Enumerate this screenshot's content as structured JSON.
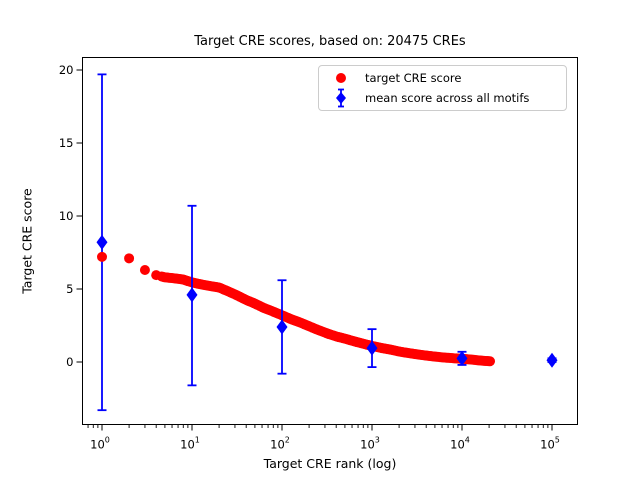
{
  "chart_data": {
    "type": "scatter",
    "title": "Target CRE scores, based on: 20475 CREs",
    "xlabel": "Target CRE rank (log)",
    "ylabel": "Target CRE score",
    "x_scale": "log",
    "x_tick_exponents": [
      0,
      1,
      2,
      3,
      4,
      5
    ],
    "y_ticks": [
      0,
      5,
      10,
      15,
      20
    ],
    "xlim_log10": [
      -0.22,
      5.28
    ],
    "ylim": [
      -4.3,
      20.9
    ],
    "grid": false,
    "legend_position": "upper right",
    "legend": [
      {
        "label": "target CRE score",
        "marker": "circle",
        "color": "#ff0000"
      },
      {
        "label": "mean score across all motifs",
        "marker": "diamond-errorbar",
        "color": "#0000ff"
      }
    ],
    "series": [
      {
        "name": "target CRE score",
        "marker": "circle",
        "color": "#ff0000",
        "n_points": 20475,
        "points_rank_score": [
          [
            1,
            7.2
          ],
          [
            2,
            7.1
          ],
          [
            3,
            6.3
          ],
          [
            4,
            5.95
          ],
          [
            5,
            5.8
          ],
          [
            6,
            5.75
          ],
          [
            7,
            5.7
          ],
          [
            8,
            5.65
          ],
          [
            10,
            5.45
          ],
          [
            13,
            5.3
          ],
          [
            16,
            5.2
          ],
          [
            20,
            5.1
          ],
          [
            25,
            4.85
          ],
          [
            32,
            4.55
          ],
          [
            40,
            4.25
          ],
          [
            50,
            4.0
          ],
          [
            63,
            3.7
          ],
          [
            80,
            3.45
          ],
          [
            100,
            3.2
          ],
          [
            130,
            2.9
          ],
          [
            160,
            2.7
          ],
          [
            200,
            2.45
          ],
          [
            250,
            2.2
          ],
          [
            320,
            1.95
          ],
          [
            400,
            1.75
          ],
          [
            500,
            1.6
          ],
          [
            630,
            1.42
          ],
          [
            800,
            1.25
          ],
          [
            1000,
            1.1
          ],
          [
            1300,
            0.95
          ],
          [
            1600,
            0.85
          ],
          [
            2000,
            0.72
          ],
          [
            2500,
            0.62
          ],
          [
            3200,
            0.52
          ],
          [
            4000,
            0.44
          ],
          [
            5000,
            0.37
          ],
          [
            6300,
            0.31
          ],
          [
            8000,
            0.26
          ],
          [
            10000,
            0.22
          ],
          [
            13000,
            0.16
          ],
          [
            16000,
            0.1
          ],
          [
            20475,
            0.05
          ]
        ]
      },
      {
        "name": "mean score across all motifs",
        "marker": "diamond",
        "color": "#0000ff",
        "points": [
          {
            "rank": 1,
            "mean": 8.2,
            "lo": -3.3,
            "hi": 19.7
          },
          {
            "rank": 10,
            "mean": 4.6,
            "lo": -1.6,
            "hi": 10.7
          },
          {
            "rank": 100,
            "mean": 2.4,
            "lo": -0.8,
            "hi": 5.6
          },
          {
            "rank": 1000,
            "mean": 0.95,
            "lo": -0.35,
            "hi": 2.25
          },
          {
            "rank": 10000,
            "mean": 0.25,
            "lo": -0.2,
            "hi": 0.7
          },
          {
            "rank": 100000,
            "mean": 0.12,
            "lo": 0.0,
            "hi": 0.25
          }
        ]
      }
    ]
  }
}
